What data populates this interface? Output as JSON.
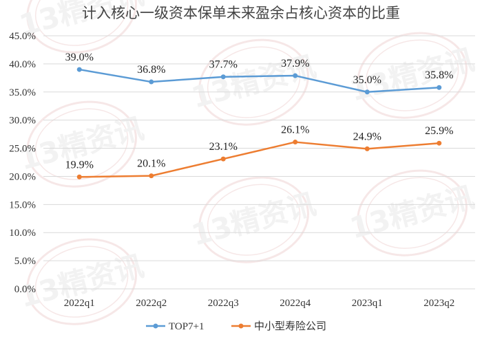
{
  "chart_data": {
    "type": "line",
    "title": "计入核心一级资本保单未来盈余占核心资本的比重",
    "categories": [
      "2022q1",
      "2022q2",
      "2022q3",
      "2022q4",
      "2023q1",
      "2023q2"
    ],
    "y_ticks": [
      "0.0%",
      "5.0%",
      "10.0%",
      "15.0%",
      "20.0%",
      "25.0%",
      "30.0%",
      "35.0%",
      "40.0%",
      "45.0%"
    ],
    "ylim": [
      0,
      45
    ],
    "grid": true,
    "legend_position": "bottom",
    "series": [
      {
        "name": "TOP7+1",
        "color": "#5b9bd5",
        "values": [
          39.0,
          36.8,
          37.7,
          37.9,
          35.0,
          35.8
        ],
        "labels": [
          "39.0%",
          "36.8%",
          "37.7%",
          "37.9%",
          "35.0%",
          "35.8%"
        ]
      },
      {
        "name": "中小型寿险公司",
        "color": "#ed7d31",
        "values": [
          19.9,
          20.1,
          23.1,
          26.1,
          24.9,
          25.9
        ],
        "labels": [
          "19.9%",
          "20.1%",
          "23.1%",
          "26.1%",
          "24.9%",
          "25.9%"
        ]
      }
    ],
    "watermark": "13精资讯"
  }
}
